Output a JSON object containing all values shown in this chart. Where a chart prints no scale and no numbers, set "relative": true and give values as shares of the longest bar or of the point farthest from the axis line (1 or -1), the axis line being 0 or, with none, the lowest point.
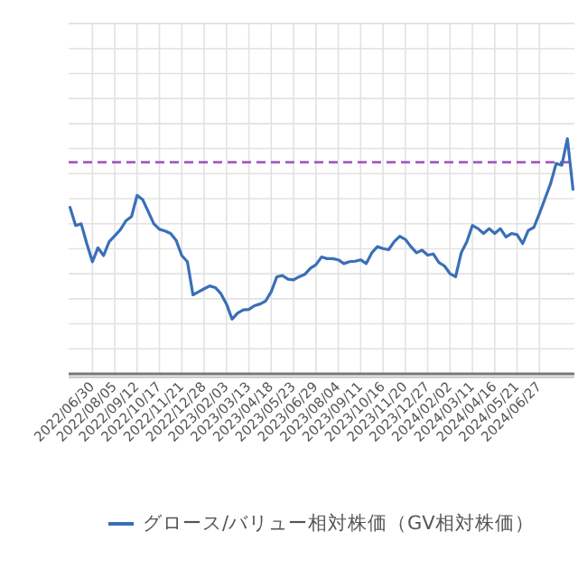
{
  "chart_data": {
    "type": "line",
    "relative": true,
    "grid": true,
    "legend": "bottom",
    "categories": [
      null,
      null,
      null,
      null,
      "2022/06/30",
      null,
      null,
      null,
      "2022/08/05",
      null,
      null,
      null,
      "2022/09/12",
      null,
      null,
      null,
      "2022/10/17",
      null,
      null,
      null,
      "2022/11/21",
      null,
      null,
      null,
      "2022/12/28",
      null,
      null,
      null,
      "2023/02/03",
      null,
      null,
      null,
      "2023/03/13",
      null,
      null,
      null,
      "2023/04/18",
      null,
      null,
      null,
      "2023/05/23",
      null,
      null,
      null,
      "2023/06/29",
      null,
      null,
      null,
      "2023/08/04",
      null,
      null,
      null,
      "2023/09/11",
      null,
      null,
      null,
      "2023/10/16",
      null,
      null,
      null,
      "2023/11/20",
      null,
      null,
      null,
      "2023/12/27",
      null,
      null,
      null,
      "2024/02/02",
      null,
      null,
      null,
      "2024/03/11",
      null,
      null,
      null,
      "2024/04/16",
      null,
      null,
      null,
      "2024/05/21",
      null,
      null,
      null,
      "2024/06/27",
      null,
      null,
      null,
      null,
      null,
      null
    ],
    "series": [
      {
        "name": "グロース/バリュー相対株価（GV相対株価）",
        "color": "#3a6fb8",
        "values": [
          0.708,
          0.631,
          0.638,
          0.554,
          0.477,
          0.536,
          0.503,
          0.562,
          0.587,
          0.613,
          0.651,
          0.669,
          0.759,
          0.741,
          0.69,
          0.638,
          0.615,
          0.608,
          0.597,
          0.567,
          0.503,
          0.477,
          0.336,
          0.349,
          0.362,
          0.374,
          0.367,
          0.341,
          0.297,
          0.233,
          0.259,
          0.272,
          0.274,
          0.29,
          0.297,
          0.31,
          0.349,
          0.413,
          0.418,
          0.403,
          0.4,
          0.413,
          0.423,
          0.449,
          0.464,
          0.497,
          0.49,
          0.49,
          0.485,
          0.469,
          0.477,
          0.479,
          0.485,
          0.469,
          0.515,
          0.541,
          0.533,
          0.528,
          0.562,
          0.585,
          0.572,
          0.541,
          0.515,
          0.526,
          0.505,
          0.51,
          0.474,
          0.459,
          0.426,
          0.413,
          0.515,
          0.562,
          0.631,
          0.618,
          0.597,
          0.618,
          0.597,
          0.618,
          0.582,
          0.597,
          0.592,
          0.554,
          0.61,
          0.623,
          0.682,
          0.746,
          0.81,
          0.895,
          0.887,
          1.0,
          0.785
        ]
      }
    ],
    "ref_lines": [
      {
        "axis": "y",
        "value": 0.9,
        "color": "#a25cc4",
        "line_style": "dashed"
      }
    ]
  }
}
